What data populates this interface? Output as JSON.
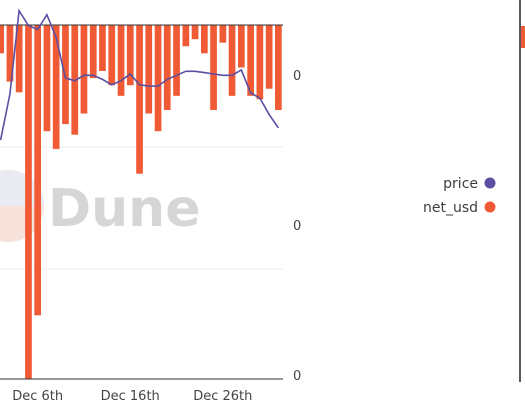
{
  "chart_data": {
    "type": "bar",
    "watermark": "Dune",
    "x_tick_labels": [
      "Dec 6th",
      "Dec 16th",
      "Dec 26th"
    ],
    "x_tick_indices": [
      4,
      14,
      24
    ],
    "right_axis_tick_labels": [
      "0",
      "0",
      "0"
    ],
    "ylim": [
      -1000,
      40
    ],
    "colors": {
      "price": "#5a4fa2",
      "net_usd": "#f05a35"
    },
    "series": [
      {
        "name": "price",
        "kind": "line",
        "values": [
          52,
          86,
          148,
          137,
          134,
          145,
          128,
          98,
          96,
          100,
          100,
          97,
          93,
          96,
          101,
          93,
          92,
          92,
          97,
          100,
          103,
          103,
          102,
          101,
          100,
          100,
          104,
          87,
          83,
          71,
          61
        ]
      },
      {
        "name": "net_usd",
        "kind": "bar",
        "values": [
          -80,
          -160,
          -190,
          -1000,
          -820,
          -300,
          -350,
          -280,
          -310,
          -250,
          -150,
          -130,
          -170,
          -200,
          -170,
          -420,
          -250,
          -300,
          -240,
          -200,
          -60,
          -40,
          -80,
          -240,
          -50,
          -200,
          -120,
          -200,
          -210,
          -180,
          -240
        ]
      }
    ],
    "legend": {
      "position": "right",
      "entries": [
        "price",
        "net_usd"
      ]
    }
  }
}
